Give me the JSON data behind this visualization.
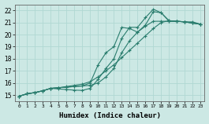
{
  "xlabel": "Humidex (Indice chaleur)",
  "xlim": [
    -0.5,
    23.5
  ],
  "ylim": [
    14.5,
    22.5
  ],
  "xticks": [
    0,
    1,
    2,
    3,
    4,
    5,
    6,
    7,
    8,
    9,
    10,
    11,
    12,
    13,
    14,
    15,
    16,
    17,
    18,
    19,
    20,
    21,
    22,
    23
  ],
  "yticks": [
    15,
    16,
    17,
    18,
    19,
    20,
    21,
    22
  ],
  "line_color": "#2a7d6e",
  "bg_color": "#cce8e4",
  "grid_color": "#b0d8d3",
  "lines": [
    {
      "x": [
        0,
        1,
        2,
        3,
        4,
        5,
        6,
        7,
        8,
        9,
        10,
        11,
        12,
        13,
        14,
        15,
        16,
        17,
        18,
        19,
        20,
        21,
        22,
        23
      ],
      "y": [
        14.9,
        15.1,
        15.2,
        15.35,
        15.55,
        15.6,
        15.65,
        15.7,
        15.75,
        15.8,
        16.0,
        16.5,
        17.2,
        18.5,
        19.5,
        20.2,
        20.7,
        21.1,
        21.1,
        21.1,
        21.1,
        21.05,
        20.95,
        20.85
      ]
    },
    {
      "x": [
        0,
        1,
        2,
        3,
        4,
        5,
        6,
        7,
        8,
        9,
        10,
        11,
        12,
        13,
        14,
        15,
        16,
        17,
        18,
        19,
        20,
        21,
        22,
        23
      ],
      "y": [
        14.9,
        15.1,
        15.2,
        15.35,
        15.55,
        15.6,
        15.65,
        15.7,
        15.75,
        16.0,
        17.5,
        18.5,
        19.0,
        20.6,
        20.5,
        20.2,
        20.8,
        21.9,
        21.8,
        21.1,
        21.1,
        21.05,
        20.95,
        20.85
      ]
    },
    {
      "x": [
        0,
        1,
        2,
        3,
        4,
        5,
        6,
        7,
        8,
        9,
        10,
        11,
        12,
        13,
        14,
        15,
        16,
        17,
        18,
        19,
        20,
        21,
        22,
        23
      ],
      "y": [
        14.9,
        15.1,
        15.2,
        15.35,
        15.55,
        15.5,
        15.45,
        15.4,
        15.38,
        15.55,
        16.3,
        17.2,
        18.0,
        19.7,
        20.6,
        20.6,
        21.4,
        22.1,
        21.8,
        21.15,
        21.1,
        21.05,
        21.05,
        20.85
      ]
    },
    {
      "x": [
        0,
        1,
        2,
        3,
        4,
        5,
        6,
        7,
        8,
        9,
        10,
        11,
        12,
        13,
        14,
        15,
        16,
        17,
        18,
        19,
        20,
        21,
        22,
        23
      ],
      "y": [
        14.9,
        15.1,
        15.2,
        15.35,
        15.55,
        15.6,
        15.7,
        15.8,
        15.9,
        16.1,
        16.5,
        17.0,
        17.5,
        18.1,
        18.7,
        19.3,
        19.9,
        20.5,
        21.0,
        21.15,
        21.1,
        21.05,
        20.95,
        20.85
      ]
    }
  ]
}
